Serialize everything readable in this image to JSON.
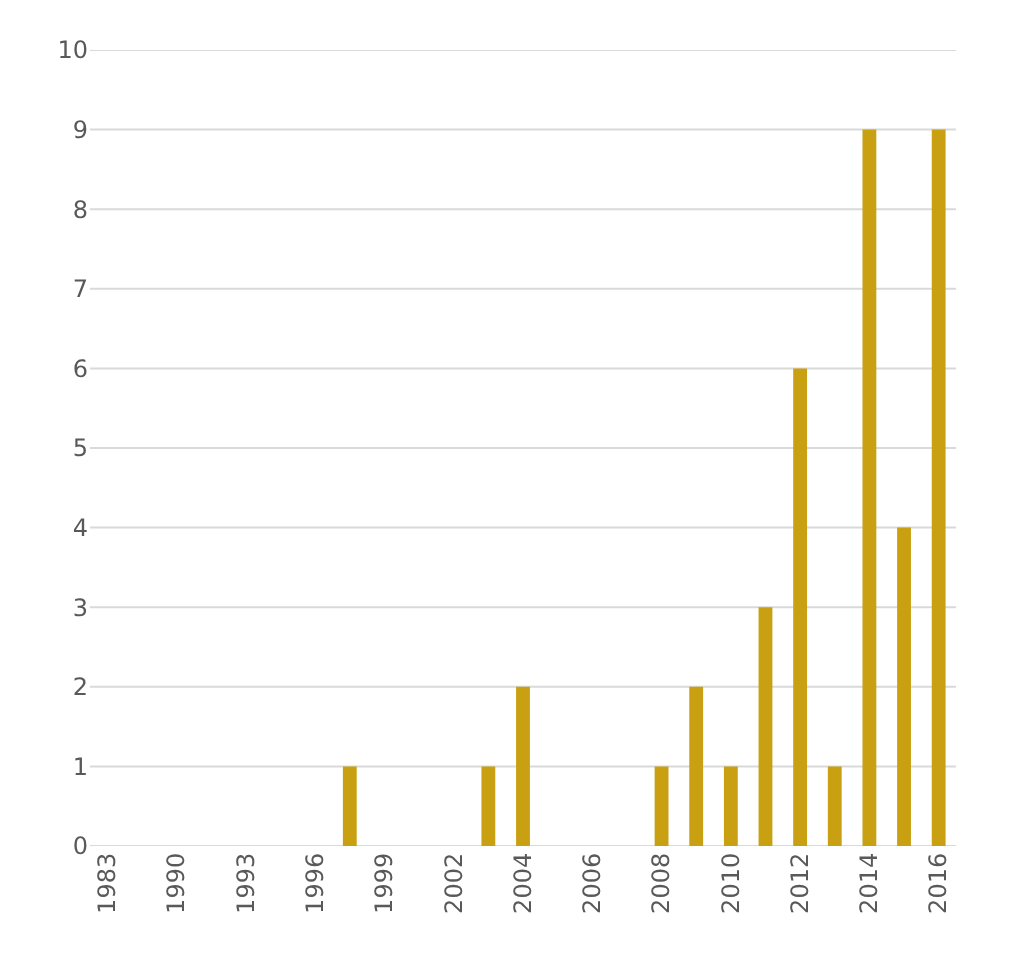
{
  "chart_data": {
    "type": "bar",
    "categories": [
      "1983",
      null,
      "1990",
      null,
      "1993",
      null,
      "1996",
      null,
      "1999",
      null,
      "2002",
      null,
      "2004",
      null,
      "2006",
      null,
      "2008",
      null,
      "2010",
      null,
      "2012",
      null,
      "2014",
      null,
      "2016"
    ],
    "values": [
      0,
      0,
      0,
      0,
      0,
      0,
      0,
      1,
      0,
      0,
      0,
      1,
      2,
      0,
      0,
      0,
      1,
      2,
      1,
      3,
      6,
      1,
      9,
      4,
      9
    ],
    "color": "#c9a012",
    "ylim": [
      0,
      10
    ],
    "yticks": [
      0,
      1,
      2,
      3,
      4,
      5,
      6,
      7,
      8,
      9,
      10
    ],
    "grid": "y",
    "legend": false
  }
}
